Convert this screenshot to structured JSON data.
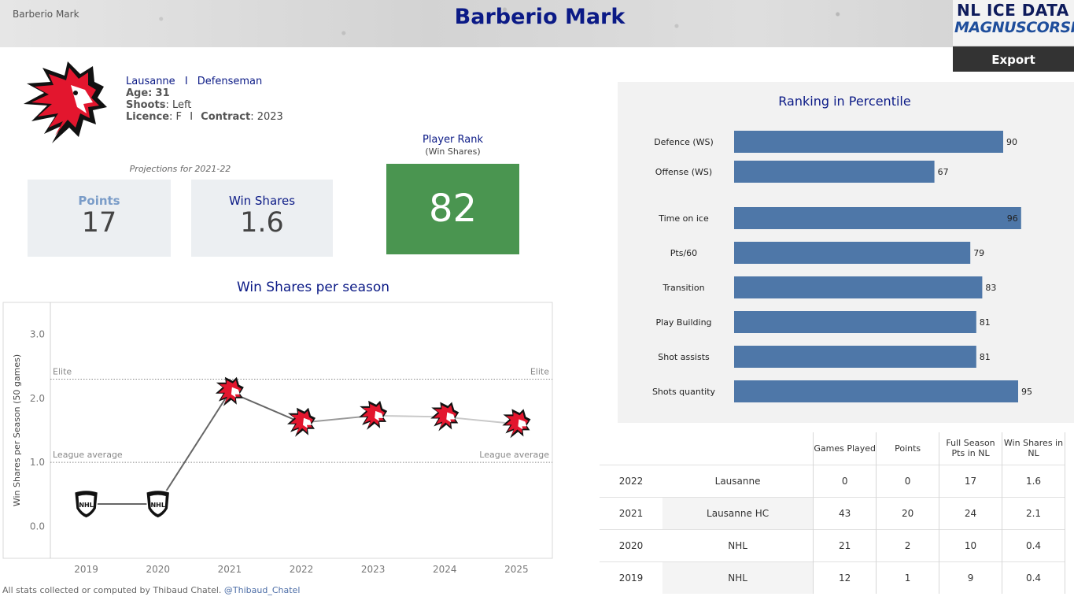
{
  "header": {
    "breadcrumb": "Barberio Mark",
    "title": "Barberio Mark",
    "brand_top": "NL ICE DATA",
    "brand_bottom": "MAGNUSCORSI",
    "export_label": "Export"
  },
  "player": {
    "team": "Lausanne",
    "separator": "I",
    "position": "Defenseman",
    "age_label": "Age:",
    "age": "31",
    "shoots_label": "Shoots",
    "shoots": ": Left",
    "licence_label": "Licence",
    "licence": ": F",
    "contract_label": "Contract",
    "contract": ": 2023"
  },
  "projections": {
    "label": "Projections for 2021-22",
    "points_label": "Points",
    "points_value": "17",
    "ws_label": "Win Shares",
    "ws_value": "1.6"
  },
  "rank": {
    "label": "Player Rank",
    "sublabel": "(Win Shares)",
    "value": "82",
    "color": "#4a9550"
  },
  "chart_data": [
    {
      "type": "line",
      "title": "Win Shares per season",
      "xlabel": "",
      "ylabel": "Win Shares per Season (50 games)",
      "x": [
        2019,
        2020,
        2021,
        2022,
        2023,
        2024,
        2025
      ],
      "series": [
        {
          "values": [
            0.35,
            0.35,
            2.1,
            1.62,
            1.73,
            1.71,
            1.6
          ],
          "markers": [
            "nhl",
            "nhl",
            "lausanne",
            "lausanne",
            "lausanne",
            "lausanne",
            "lausanne"
          ]
        }
      ],
      "ylim": [
        -0.5,
        3.5
      ],
      "yticks": [
        0.0,
        1.0,
        2.0,
        3.0
      ],
      "yticklabels": [
        "0.0",
        "1.0",
        "2.0",
        "3.0"
      ],
      "xticklabels": [
        "2019",
        "2020",
        "2021",
        "2022",
        "2023",
        "2024",
        "2025"
      ],
      "reference_lines": [
        {
          "label": "Elite",
          "value": 2.3
        },
        {
          "label": "League average",
          "value": 1.0
        }
      ],
      "grid": false
    },
    {
      "type": "bar",
      "title": "Ranking in Percentile",
      "orientation": "horizontal",
      "categories": [
        "Defence (WS)",
        "Offense (WS)",
        "Time on ice",
        "Pts/60",
        "Transition",
        "Play Building",
        "Shot assists",
        "Shots quantity"
      ],
      "values": [
        90,
        67,
        96,
        79,
        83,
        81,
        81,
        95
      ],
      "xlim": [
        0,
        100
      ],
      "color": "#4e77a8"
    }
  ],
  "table": {
    "headers": [
      "",
      "",
      "Games Played",
      "Points",
      "Full Season Pts in NL",
      "Win Shares in NL"
    ],
    "rows": [
      [
        "2022",
        "Lausanne",
        "0",
        "0",
        "17",
        "1.6"
      ],
      [
        "2021",
        "Lausanne HC",
        "43",
        "20",
        "24",
        "2.1"
      ],
      [
        "2020",
        "NHL",
        "21",
        "2",
        "10",
        "0.4"
      ],
      [
        "2019",
        "NHL",
        "12",
        "1",
        "9",
        "0.4"
      ]
    ]
  },
  "footer": {
    "text": "All stats collected or computed by Thibaud Chatel.",
    "handle": "@Thibaud_Chatel"
  },
  "colors": {
    "title": "#0b1a86",
    "bar": "#4e77a8",
    "lausanne_red": "#e3162e"
  },
  "icons": {
    "team_logo": "lion-logo-icon",
    "nhl": "nhl-shield-icon"
  }
}
